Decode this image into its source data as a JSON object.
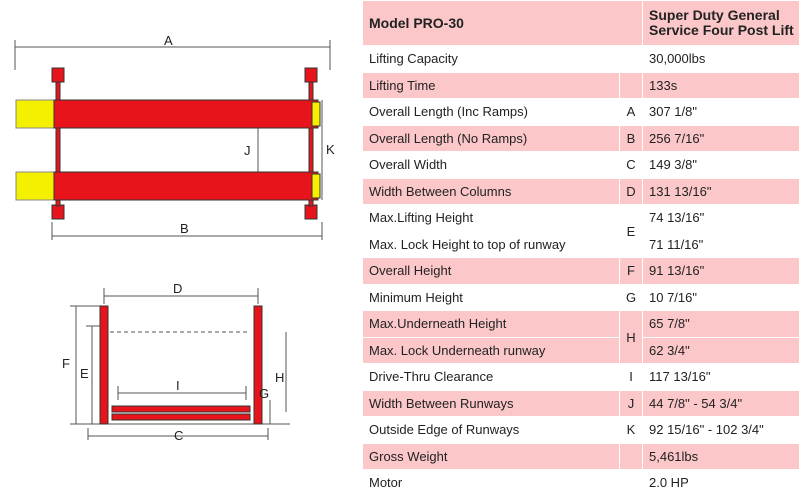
{
  "diagram": {
    "labels": {
      "A": "A",
      "B": "B",
      "J": "J",
      "K": "K",
      "D": "D",
      "F": "F",
      "E": "E",
      "I": "I",
      "G": "G",
      "H": "H",
      "C": "C"
    }
  },
  "table": {
    "header": {
      "model": "Model PRO-30",
      "name": "Super Duty General Service Four Post Lift"
    },
    "rows": [
      {
        "label": "Lifting Capacity",
        "code": "",
        "value": "30,000lbs"
      },
      {
        "label": "Lifting Time",
        "code": "",
        "value": "133s"
      },
      {
        "label": "Overall Length (Inc Ramps)",
        "code": "A",
        "value": "307 1/8\""
      },
      {
        "label": "Overall Length (No Ramps)",
        "code": "B",
        "value": "256 7/16\""
      },
      {
        "label": "Overall Width",
        "code": "C",
        "value": "149 3/8\""
      },
      {
        "label": "Width Between Columns",
        "code": "D",
        "value": "131 13/16\""
      },
      {
        "label": "Max.Lifting Height",
        "code": "E",
        "value": "74 13/16\""
      },
      {
        "label": "Max. Lock Height to top of runway",
        "code": "",
        "value": "71 11/16\""
      },
      {
        "label": "Overall Height",
        "code": "F",
        "value": "91 13/16\""
      },
      {
        "label": "Minimum Height",
        "code": "G",
        "value": "10 7/16\""
      },
      {
        "label": "Max.Underneath Height",
        "code": "H",
        "value": "65 7/8\""
      },
      {
        "label": "Max. Lock Underneath runway",
        "code": "",
        "value": "62 3/4\""
      },
      {
        "label": "Drive-Thru  Clearance",
        "code": "I",
        "value": "117 13/16\""
      },
      {
        "label": "Width Between Runways",
        "code": "J",
        "value": "44 7/8\" - 54 3/4\""
      },
      {
        "label": "Outside  Edge of Runways",
        "code": "K",
        "value": "92 15/16\" - 102 3/4\""
      },
      {
        "label": "Gross Weight",
        "code": "",
        "value": "5,461lbs"
      },
      {
        "label": "Motor",
        "code": "",
        "value": "2.0 HP"
      }
    ]
  },
  "colors": {
    "runway": "#e8141c",
    "ramp": "#f5f000",
    "row_pink": "#fbc7c9"
  }
}
